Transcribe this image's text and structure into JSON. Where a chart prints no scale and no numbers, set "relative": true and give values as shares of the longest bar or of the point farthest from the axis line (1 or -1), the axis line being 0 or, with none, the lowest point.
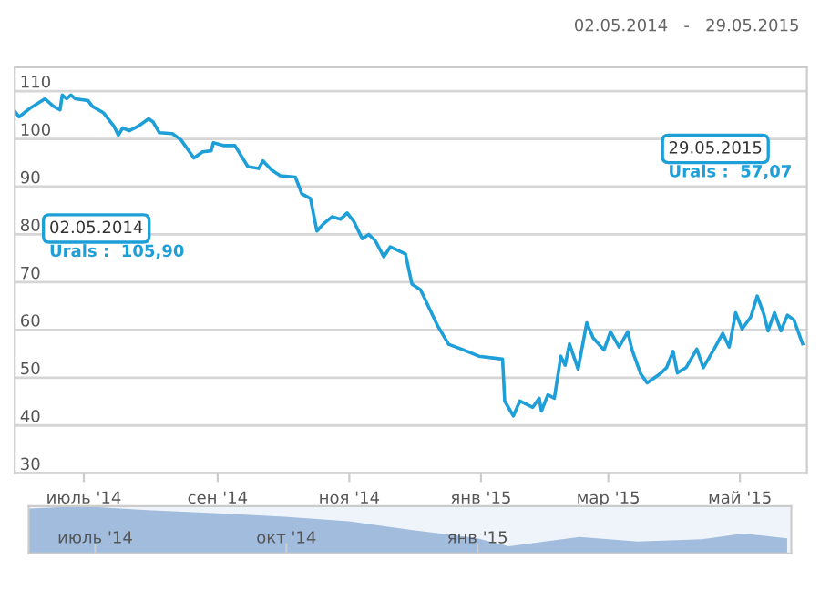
{
  "chart_data": [
    {
      "type": "line",
      "xlim": [
        "2014-05-30",
        "2015-06-01"
      ],
      "ylim": [
        30,
        115
      ],
      "yticks": [
        30,
        40,
        50,
        60,
        70,
        80,
        90,
        100,
        110
      ],
      "xticks": [
        {
          "value": "2014-07-01",
          "label": "июль '14"
        },
        {
          "value": "2014-09-01",
          "label": "сен '14"
        },
        {
          "value": "2014-11-01",
          "label": "ноя '14"
        },
        {
          "value": "2015-01-01",
          "label": "янв '15"
        },
        {
          "value": "2015-03-01",
          "label": "мар '15"
        },
        {
          "value": "2015-05-01",
          "label": "май '15"
        }
      ],
      "grid": "y",
      "legend": false,
      "marker": "none",
      "line_style": "solid",
      "annotations": [
        "02.05.2014   -   29.05.2015",
        "02.05.2014\nUrals :  105,90",
        "29.05.2015\nUrals :  57,07"
      ],
      "series": [
        {
          "color": "#1e9fd8",
          "x": [
            "2014-05-30",
            "2014-06-01",
            "2014-06-06",
            "2014-06-13",
            "2014-06-17",
            "2014-06-20",
            "2014-06-21",
            "2014-06-23",
            "2014-06-25",
            "2014-06-27",
            "2014-07-03",
            "2014-07-05",
            "2014-07-10",
            "2014-07-15",
            "2014-07-17",
            "2014-07-19",
            "2014-07-22",
            "2014-07-26",
            "2014-07-31",
            "2014-08-02",
            "2014-08-05",
            "2014-08-11",
            "2014-08-15",
            "2014-08-21",
            "2014-08-25",
            "2014-08-29",
            "2014-08-30",
            "2014-09-04",
            "2014-09-09",
            "2014-09-15",
            "2014-09-20",
            "2014-09-22",
            "2014-09-26",
            "2014-09-30",
            "2014-10-07",
            "2014-10-10",
            "2014-10-14",
            "2014-10-17",
            "2014-10-20",
            "2014-10-24",
            "2014-10-28",
            "2014-10-31",
            "2014-11-03",
            "2014-11-07",
            "2014-11-10",
            "2014-11-13",
            "2014-11-17",
            "2014-11-20",
            "2014-11-27",
            "2014-11-30",
            "2014-12-04",
            "2014-12-08",
            "2014-12-12",
            "2014-12-17",
            "2014-12-24",
            "2014-12-31",
            "2015-01-11",
            "2015-01-12",
            "2015-01-16",
            "2015-01-19",
            "2015-01-25",
            "2015-01-28",
            "2015-01-29",
            "2015-02-01",
            "2015-02-04",
            "2015-02-07",
            "2015-02-09",
            "2015-02-11",
            "2015-02-15",
            "2015-02-19",
            "2015-02-22",
            "2015-02-27",
            "2015-03-02",
            "2015-03-06",
            "2015-03-10",
            "2015-03-12",
            "2015-03-16",
            "2015-03-19",
            "2015-03-25",
            "2015-03-28",
            "2015-03-31",
            "2015-04-02",
            "2015-04-06",
            "2015-04-11",
            "2015-04-14",
            "2015-04-19",
            "2015-04-23",
            "2015-04-26",
            "2015-04-29",
            "2015-05-02",
            "2015-05-06",
            "2015-05-09",
            "2015-05-12",
            "2015-05-14",
            "2015-05-17",
            "2015-05-20",
            "2015-05-23",
            "2015-05-26",
            "2015-05-28",
            "2015-05-30"
          ],
          "values": [
            105.8,
            104.6,
            106.4,
            108.4,
            106.8,
            106.1,
            109.2,
            108.4,
            109.2,
            108.4,
            108,
            106.8,
            105.5,
            102.6,
            100.8,
            102.3,
            101.7,
            102.6,
            104.2,
            103.6,
            101.3,
            101.1,
            99.8,
            96,
            97.3,
            97.5,
            99.2,
            98.6,
            98.6,
            94.2,
            93.8,
            95.4,
            93.5,
            92.3,
            92,
            88.5,
            87.5,
            80.7,
            82.2,
            83.7,
            83.2,
            84.5,
            82.8,
            79.1,
            80,
            78.7,
            75.3,
            77.4,
            75.9,
            69.6,
            68.4,
            64.6,
            60.8,
            57,
            55.8,
            54.5,
            53.9,
            45.1,
            42,
            45.1,
            43.8,
            45.7,
            43,
            46.4,
            45.7,
            54.5,
            52.6,
            57.1,
            51.8,
            61.5,
            58.3,
            55.8,
            59.6,
            56.4,
            59.6,
            55.8,
            50.8,
            48.9,
            50.8,
            52.1,
            55.5,
            51,
            52.1,
            56,
            52.1,
            56,
            59.3,
            56.4,
            63.6,
            60.2,
            62.7,
            67.1,
            63.4,
            59.8,
            63.6,
            59.8,
            63.1,
            62.1,
            59.6,
            57.1
          ]
        }
      ]
    },
    {
      "type": "area",
      "relative": true,
      "tick_labels": "x",
      "xlim": [
        "2014-05-30",
        "2015-06-01"
      ],
      "xticks": [
        {
          "value": "2014-07-01",
          "label": "июль '14"
        },
        {
          "value": "2014-10-01",
          "label": "окт '14"
        },
        {
          "value": "2015-01-01",
          "label": "янв '15"
        }
      ],
      "series": [
        {
          "color": "#8eaed6",
          "x": [
            "2014-05-30",
            "2014-06-25",
            "2014-07-26",
            "2014-08-29",
            "2014-09-30",
            "2014-10-31",
            "2014-11-30",
            "2014-12-31",
            "2015-01-16",
            "2015-02-19",
            "2015-03-19",
            "2015-04-19",
            "2015-05-09",
            "2015-05-30"
          ],
          "values": [
            0.95,
            1,
            0.92,
            0.85,
            0.78,
            0.68,
            0.5,
            0.33,
            0.15,
            0.35,
            0.25,
            0.3,
            0.42,
            0.32
          ]
        }
      ]
    }
  ]
}
